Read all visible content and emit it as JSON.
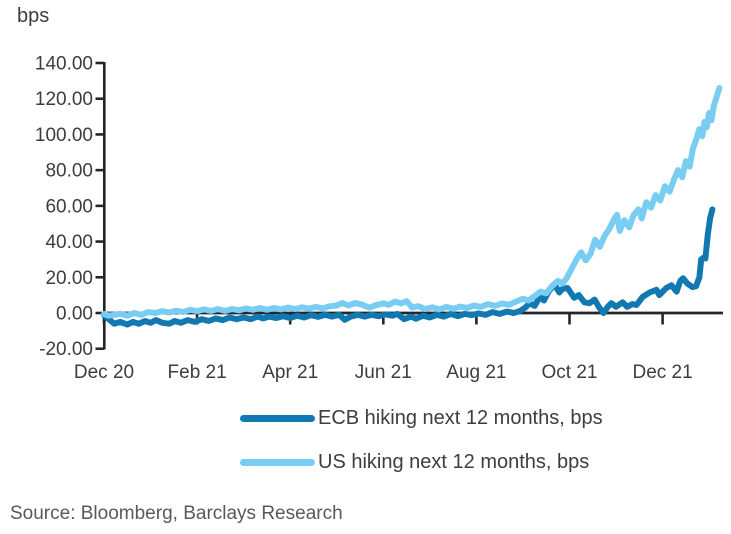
{
  "source": "Source: Bloomberg, Barclays Research",
  "legend": [
    {
      "label": "ECB hiking next 12 months, bps",
      "color": "#1278b2"
    },
    {
      "label": "US hiking next 12 months, bps",
      "color": "#79ccf2"
    }
  ],
  "colors": {
    "ecb_line": "#1278b2",
    "us_line": "#79ccf2",
    "axis": "#262626",
    "text": "#3d3d3d",
    "source_text": "#595959"
  },
  "chart_data": {
    "type": "line",
    "title": "",
    "xlabel": "",
    "ylabel": "bps",
    "ylim": [
      -20,
      140
    ],
    "yticks": [
      140,
      120,
      100,
      80,
      60,
      40,
      20,
      0,
      -20
    ],
    "ytick_labels": [
      "140.00",
      "120.00",
      "100.00",
      "80.00",
      "60.00",
      "40.00",
      "20.00",
      "0.00",
      "-20.00"
    ],
    "x_unit": "months_from_dec_2020",
    "xlim": [
      0,
      13.3
    ],
    "xticks": [
      0,
      2,
      4,
      6,
      8,
      10,
      12
    ],
    "xtick_labels": [
      "Dec 20",
      "Feb 21",
      "Apr 21",
      "Jun 21",
      "Aug 21",
      "Oct 21",
      "Dec 21"
    ],
    "x_axis_crosses_at_y": 0,
    "grid": false,
    "legend_position": "bottom",
    "series": [
      {
        "name": "ECB hiking next 12 months, bps",
        "color": "#1278b2",
        "points": [
          [
            0,
            -1
          ],
          [
            0.1,
            -3.5
          ],
          [
            0.22,
            -6
          ],
          [
            0.35,
            -5
          ],
          [
            0.5,
            -6.5
          ],
          [
            0.62,
            -5
          ],
          [
            0.75,
            -6
          ],
          [
            0.88,
            -4.5
          ],
          [
            1.0,
            -5.5
          ],
          [
            1.12,
            -4
          ],
          [
            1.25,
            -5.5
          ],
          [
            1.4,
            -6
          ],
          [
            1.52,
            -4.5
          ],
          [
            1.65,
            -5.5
          ],
          [
            1.8,
            -4
          ],
          [
            1.95,
            -5
          ],
          [
            2.1,
            -3.5
          ],
          [
            2.25,
            -4.5
          ],
          [
            2.4,
            -3
          ],
          [
            2.55,
            -4
          ],
          [
            2.7,
            -2.5
          ],
          [
            2.85,
            -3.5
          ],
          [
            3.0,
            -2.5
          ],
          [
            3.15,
            -3.5
          ],
          [
            3.3,
            -2
          ],
          [
            3.42,
            -3
          ],
          [
            3.55,
            -2
          ],
          [
            3.7,
            -2.8
          ],
          [
            3.85,
            -1.8
          ],
          [
            4.0,
            -2.8
          ],
          [
            4.15,
            -1.5
          ],
          [
            4.3,
            -2.5
          ],
          [
            4.45,
            -1.2
          ],
          [
            4.6,
            -2.2
          ],
          [
            4.75,
            -1
          ],
          [
            4.9,
            -2
          ],
          [
            5.05,
            -1
          ],
          [
            5.17,
            -3.8
          ],
          [
            5.3,
            -2
          ],
          [
            5.45,
            -1
          ],
          [
            5.6,
            -2
          ],
          [
            5.75,
            -1
          ],
          [
            5.9,
            -1.8
          ],
          [
            6.05,
            -0.8
          ],
          [
            6.2,
            -1.5
          ],
          [
            6.3,
            -0.5
          ],
          [
            6.45,
            -3.5
          ],
          [
            6.6,
            -2
          ],
          [
            6.7,
            -3.2
          ],
          [
            6.85,
            -1.5
          ],
          [
            7.0,
            -2.5
          ],
          [
            7.15,
            -1
          ],
          [
            7.3,
            -2
          ],
          [
            7.45,
            -0.5
          ],
          [
            7.6,
            -1.8
          ],
          [
            7.75,
            -0.5
          ],
          [
            7.9,
            -1.2
          ],
          [
            8.05,
            -0.2
          ],
          [
            8.2,
            -1
          ],
          [
            8.35,
            0.5
          ],
          [
            8.5,
            -0.5
          ],
          [
            8.65,
            0.8
          ],
          [
            8.8,
            0
          ],
          [
            8.93,
            1
          ],
          [
            9.05,
            3
          ],
          [
            9.14,
            5.5
          ],
          [
            9.25,
            4
          ],
          [
            9.36,
            9
          ],
          [
            9.45,
            7
          ],
          [
            9.55,
            12
          ],
          [
            9.68,
            16
          ],
          [
            9.78,
            11.5
          ],
          [
            9.85,
            13.5
          ],
          [
            9.96,
            14
          ],
          [
            10.1,
            8.5
          ],
          [
            10.2,
            10
          ],
          [
            10.32,
            6
          ],
          [
            10.43,
            5.5
          ],
          [
            10.54,
            7.5
          ],
          [
            10.64,
            3
          ],
          [
            10.73,
            0
          ],
          [
            10.82,
            3.5
          ],
          [
            10.9,
            5.5
          ],
          [
            11.0,
            3.5
          ],
          [
            11.14,
            6
          ],
          [
            11.24,
            3.5
          ],
          [
            11.35,
            5
          ],
          [
            11.44,
            4.5
          ],
          [
            11.57,
            9
          ],
          [
            11.72,
            11.5
          ],
          [
            11.87,
            13
          ],
          [
            11.93,
            10
          ],
          [
            12.08,
            14
          ],
          [
            12.19,
            15.5
          ],
          [
            12.3,
            12
          ],
          [
            12.38,
            18
          ],
          [
            12.44,
            19.5
          ],
          [
            12.53,
            16.5
          ],
          [
            12.64,
            14.5
          ],
          [
            12.72,
            15
          ],
          [
            12.79,
            20
          ],
          [
            12.83,
            30
          ],
          [
            12.88,
            31
          ],
          [
            12.92,
            30.5
          ],
          [
            12.97,
            44
          ],
          [
            13.02,
            53
          ],
          [
            13.07,
            58
          ]
        ]
      },
      {
        "name": "US hiking next 12 months, bps",
        "color": "#79ccf2",
        "points": [
          [
            0,
            -0.5
          ],
          [
            0.1,
            -1.5
          ],
          [
            0.22,
            -1
          ],
          [
            0.35,
            -0.5
          ],
          [
            0.5,
            -1.5
          ],
          [
            0.65,
            0
          ],
          [
            0.8,
            -1
          ],
          [
            0.95,
            0.5
          ],
          [
            1.1,
            0
          ],
          [
            1.25,
            1
          ],
          [
            1.4,
            0.3
          ],
          [
            1.55,
            1.3
          ],
          [
            1.7,
            0.5
          ],
          [
            1.85,
            1.8
          ],
          [
            2.0,
            1
          ],
          [
            2.15,
            2
          ],
          [
            2.3,
            1.2
          ],
          [
            2.45,
            2.2
          ],
          [
            2.6,
            1.2
          ],
          [
            2.75,
            2.2
          ],
          [
            2.9,
            1.5
          ],
          [
            3.05,
            2.5
          ],
          [
            3.2,
            1.8
          ],
          [
            3.35,
            2.8
          ],
          [
            3.5,
            1.8
          ],
          [
            3.65,
            2.8
          ],
          [
            3.8,
            2
          ],
          [
            3.95,
            3
          ],
          [
            4.1,
            2.2
          ],
          [
            4.25,
            3.2
          ],
          [
            4.4,
            2.4
          ],
          [
            4.55,
            3.4
          ],
          [
            4.7,
            2.6
          ],
          [
            4.85,
            3.8
          ],
          [
            5.0,
            4.2
          ],
          [
            5.12,
            5.6
          ],
          [
            5.25,
            4.2
          ],
          [
            5.4,
            5.6
          ],
          [
            5.55,
            4.6
          ],
          [
            5.7,
            3
          ],
          [
            5.85,
            4.4
          ],
          [
            6.0,
            5.4
          ],
          [
            6.12,
            4.6
          ],
          [
            6.25,
            6.4
          ],
          [
            6.38,
            5.4
          ],
          [
            6.5,
            6.6
          ],
          [
            6.62,
            3
          ],
          [
            6.75,
            3.8
          ],
          [
            6.9,
            2.2
          ],
          [
            7.05,
            3.2
          ],
          [
            7.2,
            2
          ],
          [
            7.35,
            3.4
          ],
          [
            7.5,
            2.4
          ],
          [
            7.65,
            3.6
          ],
          [
            7.8,
            2.8
          ],
          [
            7.95,
            4.2
          ],
          [
            8.1,
            3.4
          ],
          [
            8.25,
            5
          ],
          [
            8.4,
            4
          ],
          [
            8.55,
            5.4
          ],
          [
            8.7,
            4.6
          ],
          [
            8.85,
            6.4
          ],
          [
            9.0,
            8
          ],
          [
            9.12,
            7
          ],
          [
            9.25,
            9.5
          ],
          [
            9.38,
            12
          ],
          [
            9.5,
            11
          ],
          [
            9.62,
            15
          ],
          [
            9.75,
            18
          ],
          [
            9.85,
            16.5
          ],
          [
            9.95,
            20
          ],
          [
            10.05,
            25
          ],
          [
            10.15,
            30
          ],
          [
            10.25,
            34
          ],
          [
            10.35,
            29.5
          ],
          [
            10.45,
            33
          ],
          [
            10.55,
            41
          ],
          [
            10.65,
            37
          ],
          [
            10.75,
            43
          ],
          [
            10.85,
            47
          ],
          [
            10.95,
            52
          ],
          [
            11.02,
            55
          ],
          [
            11.08,
            46
          ],
          [
            11.18,
            52
          ],
          [
            11.28,
            48
          ],
          [
            11.38,
            55
          ],
          [
            11.48,
            58
          ],
          [
            11.55,
            53
          ],
          [
            11.65,
            62
          ],
          [
            11.75,
            59
          ],
          [
            11.85,
            66
          ],
          [
            11.95,
            63
          ],
          [
            12.05,
            71
          ],
          [
            12.15,
            68
          ],
          [
            12.25,
            75
          ],
          [
            12.33,
            80
          ],
          [
            12.42,
            76
          ],
          [
            12.5,
            85
          ],
          [
            12.58,
            82
          ],
          [
            12.65,
            92
          ],
          [
            12.72,
            97
          ],
          [
            12.79,
            103
          ],
          [
            12.85,
            99
          ],
          [
            12.9,
            107
          ],
          [
            12.95,
            104
          ],
          [
            13.0,
            112
          ],
          [
            13.05,
            108
          ],
          [
            13.1,
            116
          ],
          [
            13.16,
            121
          ],
          [
            13.22,
            126
          ]
        ]
      }
    ]
  }
}
